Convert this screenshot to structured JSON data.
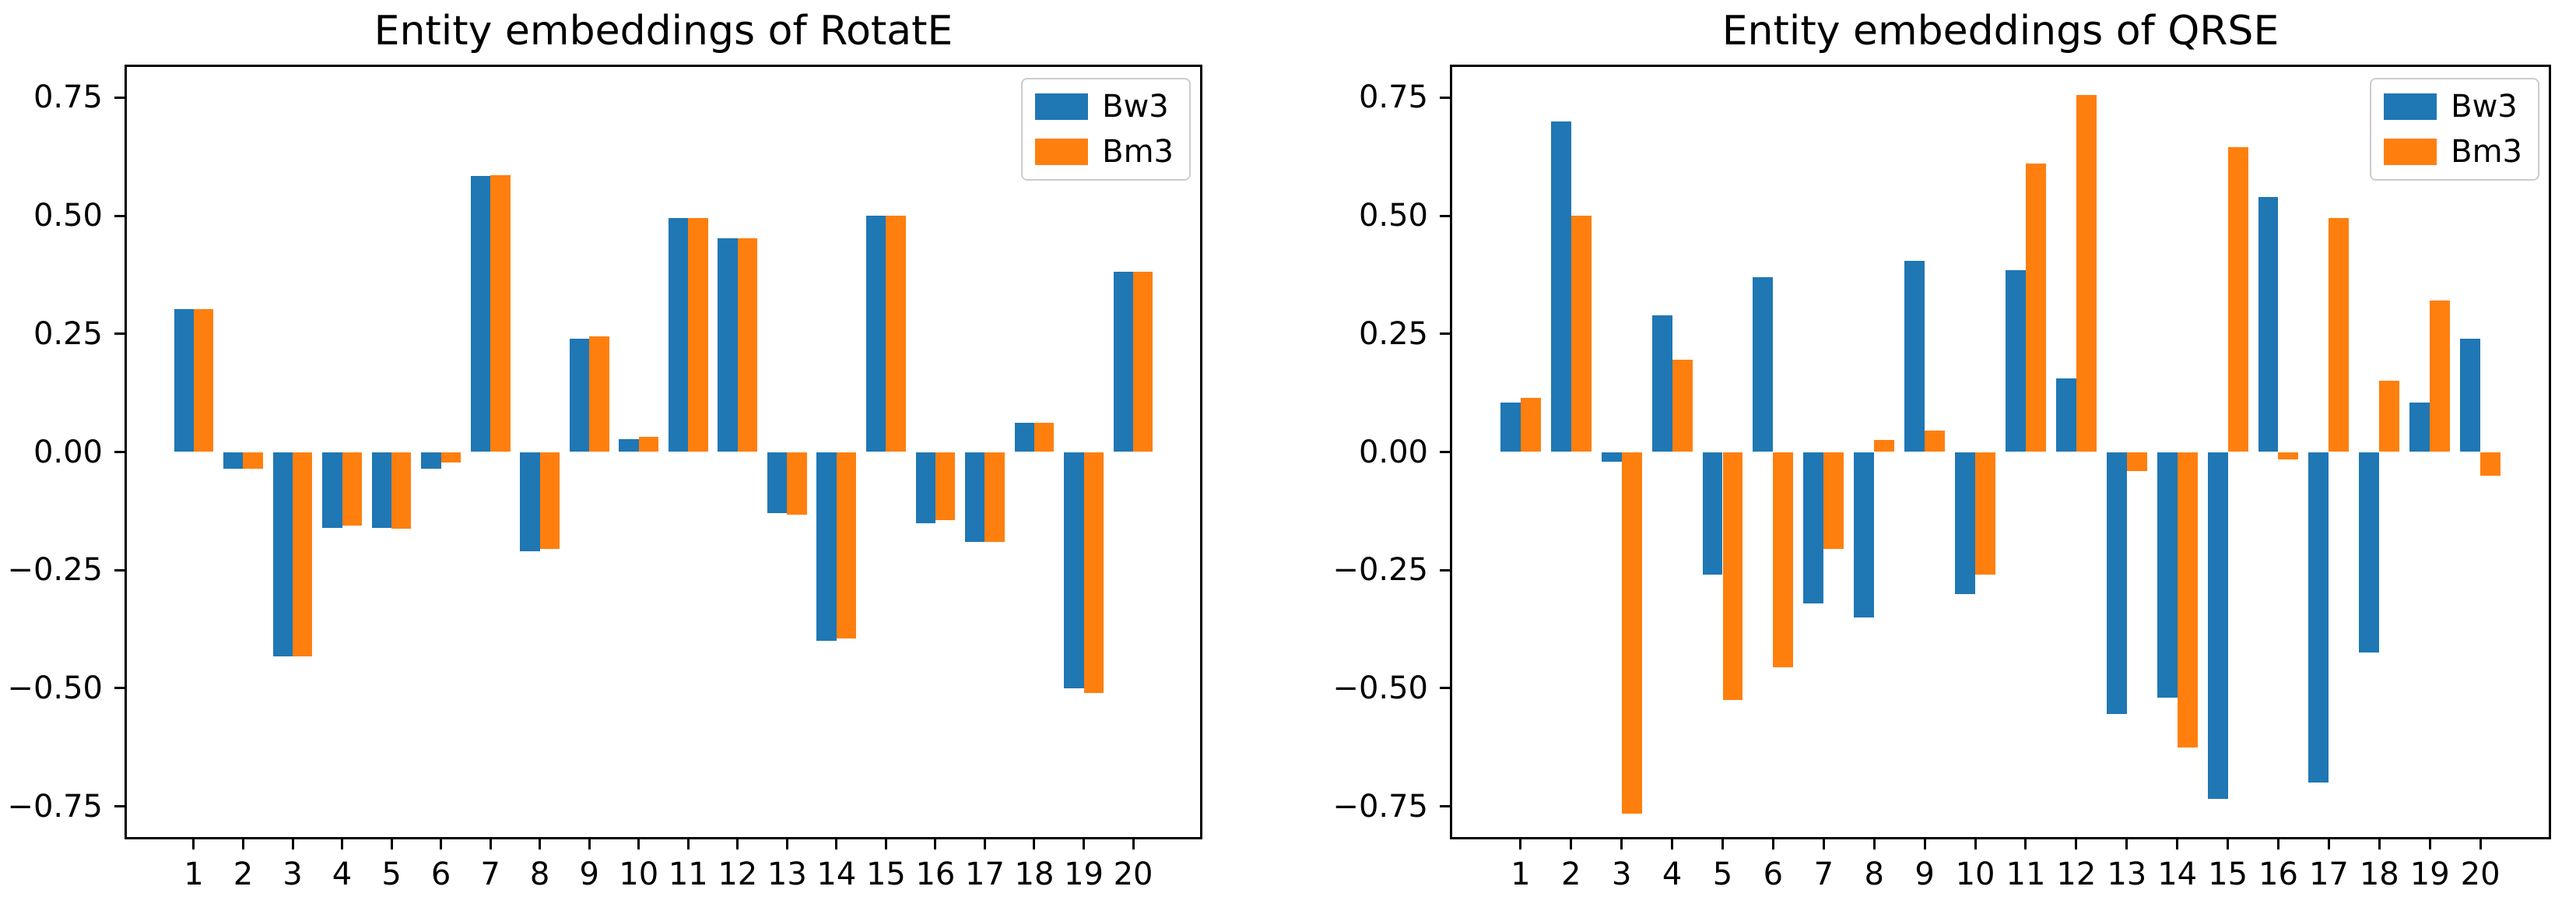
{
  "figure": {
    "background": "#ffffff"
  },
  "series_colors": {
    "Bw3": "#1f77b4",
    "Bm3": "#ff7f0e"
  },
  "chart_data": [
    {
      "type": "bar",
      "title": "Entity embeddings of RotatE",
      "xlabel": "",
      "ylabel": "",
      "grid": false,
      "legend_position": "upper right",
      "ylim": [
        -0.82,
        0.82
      ],
      "categories": [
        "1",
        "2",
        "3",
        "4",
        "5",
        "6",
        "7",
        "8",
        "9",
        "10",
        "11",
        "12",
        "13",
        "14",
        "15",
        "16",
        "17",
        "18",
        "19",
        "20"
      ],
      "yticks": [
        {
          "value": 0.75,
          "label": "0.75"
        },
        {
          "value": 0.5,
          "label": "0.50"
        },
        {
          "value": 0.25,
          "label": "0.25"
        },
        {
          "value": 0.0,
          "label": "0.00"
        },
        {
          "value": -0.25,
          "label": "−0.25"
        },
        {
          "value": -0.5,
          "label": "−0.50"
        },
        {
          "value": -0.75,
          "label": "−0.75"
        }
      ],
      "series": [
        {
          "name": "Bw3",
          "color": "#1f77b4",
          "values": [
            0.302,
            -0.035,
            -0.432,
            -0.16,
            -0.16,
            -0.035,
            0.585,
            -0.21,
            0.24,
            0.028,
            0.495,
            0.452,
            -0.13,
            -0.4,
            0.5,
            -0.15,
            -0.19,
            0.062,
            -0.5,
            0.382
          ]
        },
        {
          "name": "Bm3",
          "color": "#ff7f0e",
          "values": [
            0.302,
            -0.035,
            -0.432,
            -0.155,
            -0.162,
            -0.022,
            0.586,
            -0.205,
            0.244,
            0.032,
            0.495,
            0.452,
            -0.132,
            -0.395,
            0.5,
            -0.145,
            -0.19,
            0.062,
            -0.51,
            0.382
          ]
        }
      ]
    },
    {
      "type": "bar",
      "title": "Entity embeddings of QRSE",
      "xlabel": "",
      "ylabel": "",
      "grid": false,
      "legend_position": "upper right",
      "ylim": [
        -0.82,
        0.82
      ],
      "categories": [
        "1",
        "2",
        "3",
        "4",
        "5",
        "6",
        "7",
        "8",
        "9",
        "10",
        "11",
        "12",
        "13",
        "14",
        "15",
        "16",
        "17",
        "18",
        "19",
        "20"
      ],
      "yticks": [
        {
          "value": 0.75,
          "label": "0.75"
        },
        {
          "value": 0.5,
          "label": "0.50"
        },
        {
          "value": 0.25,
          "label": "0.25"
        },
        {
          "value": 0.0,
          "label": "0.00"
        },
        {
          "value": -0.25,
          "label": "−0.25"
        },
        {
          "value": -0.5,
          "label": "−0.50"
        },
        {
          "value": -0.75,
          "label": "−0.75"
        }
      ],
      "series": [
        {
          "name": "Bw3",
          "color": "#1f77b4",
          "values": [
            0.105,
            0.7,
            -0.02,
            0.29,
            -0.26,
            0.37,
            -0.32,
            -0.35,
            0.405,
            -0.3,
            0.385,
            0.155,
            -0.555,
            -0.52,
            -0.735,
            0.54,
            -0.7,
            -0.425,
            0.105,
            0.24
          ]
        },
        {
          "name": "Bm3",
          "color": "#ff7f0e",
          "values": [
            0.115,
            0.5,
            -0.765,
            0.195,
            -0.525,
            -0.455,
            -0.205,
            0.025,
            0.045,
            -0.26,
            0.61,
            0.755,
            -0.04,
            -0.625,
            0.645,
            -0.015,
            0.495,
            0.15,
            0.32,
            -0.05
          ]
        }
      ]
    }
  ]
}
